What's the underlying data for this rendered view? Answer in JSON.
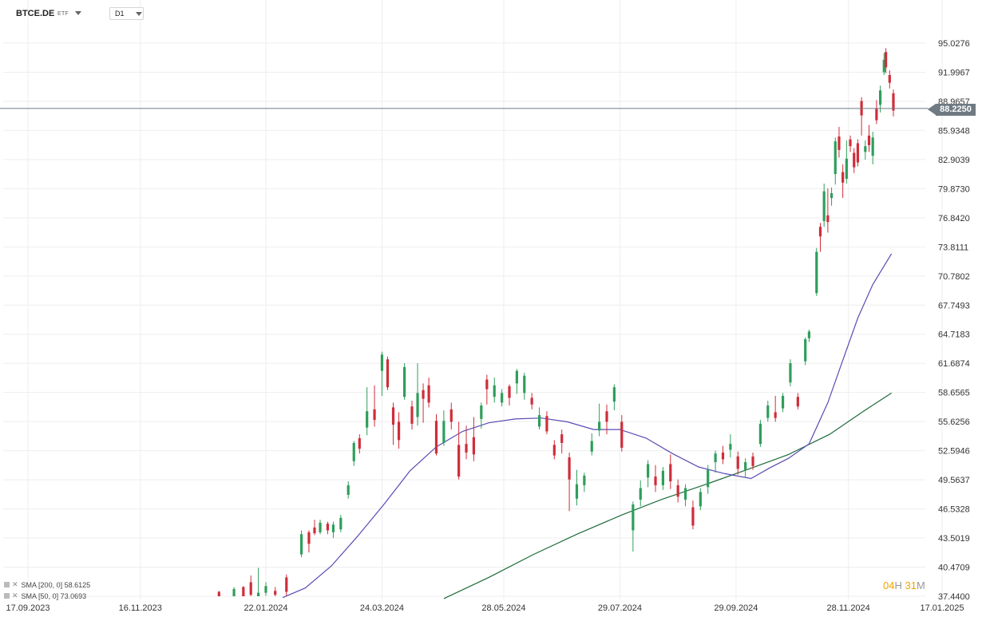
{
  "header": {
    "symbol": "BTCE.DE",
    "type_badge": "ETF",
    "timeframe": "D1"
  },
  "legend": {
    "items": [
      {
        "label": "SMA [200, 0] 58.6125",
        "color": "#1e6b3a"
      },
      {
        "label": "SMA [50, 0] 73.0693",
        "color": "#5a4bb5"
      }
    ]
  },
  "countdown": {
    "hours": "04",
    "hours_unit": "H",
    "minutes": "31",
    "minutes_unit": "M"
  },
  "current_price": {
    "label": "88.2250",
    "value": 88.225
  },
  "colors": {
    "up": "#2e9e5b",
    "down": "#cf2d3a",
    "sma200": "#1e6b3a",
    "sma50": "#5a4bb5",
    "grid": "#eeeeee"
  },
  "chart_data": {
    "type": "candlestick",
    "y_ticks": [
      "95.0276",
      "91.9967",
      "88.9657",
      "85.9348",
      "82.9039",
      "79.8730",
      "76.8420",
      "73.8111",
      "70.7802",
      "67.7493",
      "64.7183",
      "61.6874",
      "58.6565",
      "55.6256",
      "52.5946",
      "49.5637",
      "46.5328",
      "43.5019",
      "40.4709",
      "37.4400"
    ],
    "x_ticks": [
      "17.09.2023",
      "16.11.2023",
      "22.01.2024",
      "24.03.2024",
      "28.05.2024",
      "29.07.2024",
      "29.09.2024",
      "28.11.2024",
      "17.01.2025"
    ],
    "candles": [
      {
        "date": "2023-12-28",
        "open": 37.9,
        "close": 37.2,
        "high": 38.0,
        "low": 37.0
      },
      {
        "date": "2024-01-05",
        "open": 37.3,
        "close": 38.2,
        "high": 38.4,
        "low": 36.9
      },
      {
        "date": "2024-01-10",
        "open": 38.4,
        "close": 36.9,
        "high": 38.5,
        "low": 36.5
      },
      {
        "date": "2024-01-14",
        "open": 38.9,
        "close": 37.6,
        "high": 39.6,
        "low": 37.3
      },
      {
        "date": "2024-01-18",
        "open": 37.2,
        "close": 37.8,
        "high": 40.4,
        "low": 37.2
      },
      {
        "date": "2024-01-22",
        "open": 37.8,
        "close": 38.5,
        "high": 38.9,
        "low": 37.5
      },
      {
        "date": "2024-01-27",
        "open": 38.0,
        "close": 37.6,
        "high": 38.4,
        "low": 37.2
      },
      {
        "date": "2024-02-02",
        "open": 39.4,
        "close": 37.9,
        "high": 39.7,
        "low": 37.5
      },
      {
        "date": "2024-02-10",
        "open": 41.8,
        "close": 43.9,
        "high": 44.3,
        "low": 41.5
      },
      {
        "date": "2024-02-14",
        "open": 44.1,
        "close": 42.9,
        "high": 44.3,
        "low": 42.0
      },
      {
        "date": "2024-02-17",
        "open": 44.6,
        "close": 44.0,
        "high": 45.4,
        "low": 43.8
      },
      {
        "date": "2024-02-20",
        "open": 44.1,
        "close": 45.1,
        "high": 45.4,
        "low": 43.9
      },
      {
        "date": "2024-02-24",
        "open": 45.0,
        "close": 44.3,
        "high": 45.2,
        "low": 43.9
      },
      {
        "date": "2024-02-27",
        "open": 44.1,
        "close": 44.9,
        "high": 45.2,
        "low": 43.5
      },
      {
        "date": "2024-03-02",
        "open": 44.4,
        "close": 45.6,
        "high": 45.9,
        "low": 44.1
      },
      {
        "date": "2024-03-06",
        "open": 48.0,
        "close": 49.0,
        "high": 49.4,
        "low": 47.6
      },
      {
        "date": "2024-03-09",
        "open": 51.5,
        "close": 53.4,
        "high": 53.6,
        "low": 51.0
      },
      {
        "date": "2024-03-12",
        "open": 53.9,
        "close": 52.8,
        "high": 54.3,
        "low": 52.3
      },
      {
        "date": "2024-03-16",
        "open": 55.0,
        "close": 56.7,
        "high": 59.2,
        "low": 54.2
      },
      {
        "date": "2024-03-20",
        "open": 56.9,
        "close": 55.8,
        "high": 59.4,
        "low": 55.1
      },
      {
        "date": "2024-03-24",
        "open": 60.9,
        "close": 62.6,
        "high": 62.9,
        "low": 58.3
      },
      {
        "date": "2024-03-27",
        "open": 62.1,
        "close": 59.2,
        "high": 62.4,
        "low": 58.9
      },
      {
        "date": "2024-03-30",
        "open": 57.1,
        "close": 55.3,
        "high": 57.6,
        "low": 53.2
      },
      {
        "date": "2024-04-02",
        "open": 55.6,
        "close": 53.7,
        "high": 56.6,
        "low": 52.8
      },
      {
        "date": "2024-04-05",
        "open": 58.2,
        "close": 61.3,
        "high": 61.7,
        "low": 57.9
      },
      {
        "date": "2024-04-09",
        "open": 57.2,
        "close": 55.4,
        "high": 57.8,
        "low": 54.8
      },
      {
        "date": "2024-04-12",
        "open": 56.1,
        "close": 58.6,
        "high": 61.7,
        "low": 55.2
      },
      {
        "date": "2024-04-15",
        "open": 58.9,
        "close": 58.0,
        "high": 59.6,
        "low": 55.5
      },
      {
        "date": "2024-04-18",
        "open": 59.4,
        "close": 57.6,
        "high": 60.2,
        "low": 57.1
      },
      {
        "date": "2024-04-22",
        "open": 55.7,
        "close": 52.3,
        "high": 56.4,
        "low": 52.1
      },
      {
        "date": "2024-04-26",
        "open": 53.4,
        "close": 55.7,
        "high": 56.8,
        "low": 53.1
      },
      {
        "date": "2024-04-30",
        "open": 56.9,
        "close": 55.6,
        "high": 57.6,
        "low": 54.8
      },
      {
        "date": "2024-05-04",
        "open": 53.2,
        "close": 49.9,
        "high": 55.6,
        "low": 49.6
      },
      {
        "date": "2024-05-08",
        "open": 53.3,
        "close": 52.4,
        "high": 55.2,
        "low": 51.7
      },
      {
        "date": "2024-05-12",
        "open": 54.0,
        "close": 52.2,
        "high": 56.1,
        "low": 51.5
      },
      {
        "date": "2024-05-16",
        "open": 55.9,
        "close": 57.3,
        "high": 57.6,
        "low": 54.9
      },
      {
        "date": "2024-05-19",
        "open": 60.0,
        "close": 59.0,
        "high": 60.5,
        "low": 57.4
      },
      {
        "date": "2024-05-23",
        "open": 58.2,
        "close": 59.4,
        "high": 60.2,
        "low": 57.6
      },
      {
        "date": "2024-05-27",
        "open": 57.6,
        "close": 58.6,
        "high": 59.0,
        "low": 57.2
      },
      {
        "date": "2024-05-31",
        "open": 59.3,
        "close": 58.1,
        "high": 59.5,
        "low": 57.3
      },
      {
        "date": "2024-06-04",
        "open": 59.6,
        "close": 60.9,
        "high": 61.1,
        "low": 58.5
      },
      {
        "date": "2024-06-08",
        "open": 58.6,
        "close": 60.4,
        "high": 60.7,
        "low": 57.9
      },
      {
        "date": "2024-06-12",
        "open": 58.1,
        "close": 57.4,
        "high": 58.6,
        "low": 56.9
      },
      {
        "date": "2024-06-16",
        "open": 55.1,
        "close": 56.3,
        "high": 57.1,
        "low": 54.8
      },
      {
        "date": "2024-06-20",
        "open": 56.2,
        "close": 54.6,
        "high": 56.7,
        "low": 54.3
      },
      {
        "date": "2024-06-24",
        "open": 53.2,
        "close": 52.1,
        "high": 53.7,
        "low": 51.7
      },
      {
        "date": "2024-06-28",
        "open": 54.3,
        "close": 53.4,
        "high": 54.8,
        "low": 52.3
      },
      {
        "date": "2024-07-02",
        "open": 51.9,
        "close": 49.6,
        "high": 52.4,
        "low": 46.3
      },
      {
        "date": "2024-07-06",
        "open": 47.6,
        "close": 49.1,
        "high": 50.6,
        "low": 46.9
      },
      {
        "date": "2024-07-10",
        "open": 49.0,
        "close": 50.0,
        "high": 50.3,
        "low": 48.3
      },
      {
        "date": "2024-07-14",
        "open": 52.5,
        "close": 53.6,
        "high": 54.4,
        "low": 52.1
      },
      {
        "date": "2024-07-18",
        "open": 54.7,
        "close": 55.6,
        "high": 57.5,
        "low": 54.1
      },
      {
        "date": "2024-07-22",
        "open": 56.7,
        "close": 55.6,
        "high": 57.4,
        "low": 54.3
      },
      {
        "date": "2024-07-26",
        "open": 57.7,
        "close": 59.2,
        "high": 59.5,
        "low": 56.8
      },
      {
        "date": "2024-07-30",
        "open": 55.6,
        "close": 52.9,
        "high": 56.3,
        "low": 52.5
      },
      {
        "date": "2024-08-05",
        "open": 44.3,
        "close": 47.0,
        "high": 47.3,
        "low": 42.1
      },
      {
        "date": "2024-08-09",
        "open": 47.5,
        "close": 48.7,
        "high": 49.5,
        "low": 46.8
      },
      {
        "date": "2024-08-13",
        "open": 49.8,
        "close": 51.2,
        "high": 51.6,
        "low": 48.8
      },
      {
        "date": "2024-08-17",
        "open": 49.9,
        "close": 49.0,
        "high": 51.1,
        "low": 48.3
      },
      {
        "date": "2024-08-21",
        "open": 49.0,
        "close": 50.5,
        "high": 50.9,
        "low": 48.5
      },
      {
        "date": "2024-08-25",
        "open": 51.2,
        "close": 49.4,
        "high": 52.2,
        "low": 48.6
      },
      {
        "date": "2024-08-29",
        "open": 49.0,
        "close": 47.8,
        "high": 49.6,
        "low": 47.2
      },
      {
        "date": "2024-09-02",
        "open": 47.5,
        "close": 48.7,
        "high": 49.1,
        "low": 46.8
      },
      {
        "date": "2024-09-06",
        "open": 46.7,
        "close": 44.8,
        "high": 47.4,
        "low": 44.4
      },
      {
        "date": "2024-09-10",
        "open": 46.8,
        "close": 48.3,
        "high": 48.7,
        "low": 46.4
      },
      {
        "date": "2024-09-14",
        "open": 48.8,
        "close": 50.6,
        "high": 51.1,
        "low": 48.1
      },
      {
        "date": "2024-09-18",
        "open": 51.4,
        "close": 52.3,
        "high": 52.6,
        "low": 50.3
      },
      {
        "date": "2024-09-22",
        "open": 52.4,
        "close": 51.7,
        "high": 53.1,
        "low": 51.2
      },
      {
        "date": "2024-09-26",
        "open": 52.7,
        "close": 53.3,
        "high": 54.3,
        "low": 51.9
      },
      {
        "date": "2024-09-30",
        "open": 52.0,
        "close": 50.7,
        "high": 52.5,
        "low": 50.1
      },
      {
        "date": "2024-10-04",
        "open": 50.6,
        "close": 51.4,
        "high": 51.8,
        "low": 49.8
      },
      {
        "date": "2024-10-08",
        "open": 52.0,
        "close": 51.0,
        "high": 52.4,
        "low": 50.6
      },
      {
        "date": "2024-10-12",
        "open": 53.3,
        "close": 55.4,
        "high": 55.8,
        "low": 53.0
      },
      {
        "date": "2024-10-16",
        "open": 56.0,
        "close": 57.3,
        "high": 57.8,
        "low": 55.6
      },
      {
        "date": "2024-10-20",
        "open": 56.6,
        "close": 56.0,
        "high": 58.3,
        "low": 55.6
      },
      {
        "date": "2024-10-24",
        "open": 57.0,
        "close": 58.3,
        "high": 58.6,
        "low": 56.6
      },
      {
        "date": "2024-10-28",
        "open": 59.7,
        "close": 61.7,
        "high": 62.1,
        "low": 59.3
      },
      {
        "date": "2024-11-01",
        "open": 58.2,
        "close": 57.2,
        "high": 58.6,
        "low": 56.9
      },
      {
        "date": "2024-11-05",
        "open": 61.9,
        "close": 64.2,
        "high": 64.4,
        "low": 61.5
      },
      {
        "date": "2024-11-07",
        "open": 64.3,
        "close": 65.0,
        "high": 65.2,
        "low": 63.9
      },
      {
        "date": "2024-11-11",
        "open": 69.0,
        "close": 73.3,
        "high": 73.7,
        "low": 68.7
      },
      {
        "date": "2024-11-13",
        "open": 75.9,
        "close": 74.9,
        "high": 76.3,
        "low": 73.3
      },
      {
        "date": "2024-11-15",
        "open": 76.5,
        "close": 79.6,
        "high": 80.4,
        "low": 75.9
      },
      {
        "date": "2024-11-17",
        "open": 77.1,
        "close": 76.4,
        "high": 79.9,
        "low": 75.3
      },
      {
        "date": "2024-11-19",
        "open": 78.9,
        "close": 79.4,
        "high": 80.0,
        "low": 78.1
      },
      {
        "date": "2024-11-21",
        "open": 81.4,
        "close": 84.8,
        "high": 85.2,
        "low": 80.3
      },
      {
        "date": "2024-11-23",
        "open": 85.3,
        "close": 83.9,
        "high": 86.3,
        "low": 83.1
      },
      {
        "date": "2024-11-25",
        "open": 81.6,
        "close": 80.5,
        "high": 82.4,
        "low": 78.9
      },
      {
        "date": "2024-11-27",
        "open": 80.9,
        "close": 83.0,
        "high": 84.9,
        "low": 80.4
      },
      {
        "date": "2024-11-29",
        "open": 85.0,
        "close": 84.3,
        "high": 85.4,
        "low": 83.7
      },
      {
        "date": "2024-12-01",
        "open": 83.6,
        "close": 82.1,
        "high": 84.1,
        "low": 81.5
      },
      {
        "date": "2024-12-03",
        "open": 84.6,
        "close": 82.6,
        "high": 85.0,
        "low": 82.2
      },
      {
        "date": "2024-12-05",
        "open": 89.0,
        "close": 87.5,
        "high": 89.4,
        "low": 85.4
      },
      {
        "date": "2024-12-07",
        "open": 83.7,
        "close": 84.3,
        "high": 84.9,
        "low": 82.9
      },
      {
        "date": "2024-12-09",
        "open": 85.4,
        "close": 84.4,
        "high": 86.5,
        "low": 83.7
      },
      {
        "date": "2024-12-11",
        "open": 83.3,
        "close": 85.2,
        "high": 85.8,
        "low": 82.4
      },
      {
        "date": "2024-12-13",
        "open": 88.2,
        "close": 87.0,
        "high": 89.1,
        "low": 86.6
      },
      {
        "date": "2024-12-15",
        "open": 88.6,
        "close": 90.1,
        "high": 90.6,
        "low": 87.8
      },
      {
        "date": "2024-12-17",
        "open": 92.0,
        "close": 93.3,
        "high": 94.0,
        "low": 91.7
      },
      {
        "date": "2024-12-18",
        "open": 94.1,
        "close": 92.5,
        "high": 94.5,
        "low": 91.9
      },
      {
        "date": "2024-12-20",
        "open": 91.7,
        "close": 90.9,
        "high": 92.2,
        "low": 90.3
      },
      {
        "date": "2024-12-22",
        "open": 89.8,
        "close": 88.0,
        "high": 90.2,
        "low": 87.4
      }
    ],
    "sma50": [
      {
        "date": "2024-01-31",
        "value": 37.3
      },
      {
        "date": "2024-02-12",
        "value": 38.3
      },
      {
        "date": "2024-02-26",
        "value": 40.6
      },
      {
        "date": "2024-03-11",
        "value": 43.7
      },
      {
        "date": "2024-03-25",
        "value": 47.0
      },
      {
        "date": "2024-04-08",
        "value": 50.5
      },
      {
        "date": "2024-04-22",
        "value": 53.0
      },
      {
        "date": "2024-05-06",
        "value": 54.6
      },
      {
        "date": "2024-05-20",
        "value": 55.5
      },
      {
        "date": "2024-06-03",
        "value": 55.9
      },
      {
        "date": "2024-06-17",
        "value": 56.0
      },
      {
        "date": "2024-07-01",
        "value": 55.6
      },
      {
        "date": "2024-07-15",
        "value": 54.8
      },
      {
        "date": "2024-07-29",
        "value": 54.8
      },
      {
        "date": "2024-08-12",
        "value": 53.9
      },
      {
        "date": "2024-08-26",
        "value": 52.3
      },
      {
        "date": "2024-09-09",
        "value": 50.9
      },
      {
        "date": "2024-09-23",
        "value": 50.2
      },
      {
        "date": "2024-10-07",
        "value": 49.7
      },
      {
        "date": "2024-10-17",
        "value": 50.8
      },
      {
        "date": "2024-10-27",
        "value": 51.8
      },
      {
        "date": "2024-11-07",
        "value": 53.3
      },
      {
        "date": "2024-11-17",
        "value": 57.6
      },
      {
        "date": "2024-11-25",
        "value": 62.0
      },
      {
        "date": "2024-12-03",
        "value": 66.4
      },
      {
        "date": "2024-12-11",
        "value": 69.9
      },
      {
        "date": "2024-12-21",
        "value": 73.1
      }
    ],
    "sma200": [
      {
        "date": "2024-04-26",
        "value": 37.2
      },
      {
        "date": "2024-05-20",
        "value": 39.4
      },
      {
        "date": "2024-06-13",
        "value": 41.8
      },
      {
        "date": "2024-07-06",
        "value": 43.9
      },
      {
        "date": "2024-07-30",
        "value": 45.9
      },
      {
        "date": "2024-08-20",
        "value": 47.5
      },
      {
        "date": "2024-09-13",
        "value": 49.1
      },
      {
        "date": "2024-10-06",
        "value": 50.7
      },
      {
        "date": "2024-10-27",
        "value": 52.2
      },
      {
        "date": "2024-11-18",
        "value": 54.3
      },
      {
        "date": "2024-12-06",
        "value": 56.7
      },
      {
        "date": "2024-12-21",
        "value": 58.6
      }
    ],
    "y_range": [
      37.44,
      95.0276
    ],
    "x_range": [
      "2023-09-17",
      "2025-01-17"
    ],
    "grid": true
  }
}
